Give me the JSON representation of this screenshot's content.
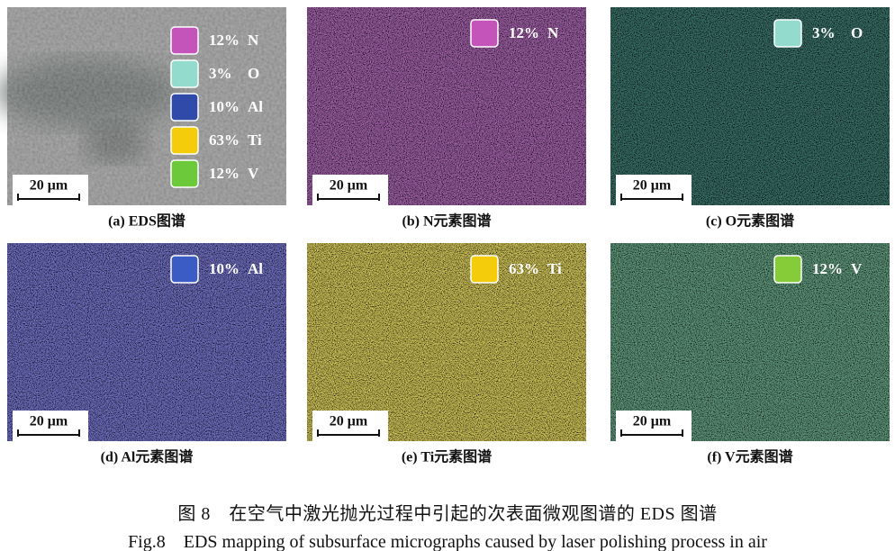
{
  "panels": [
    {
      "caption": "(a) EDS图谱",
      "scale_bar": "20 μm",
      "legend": [
        {
          "percent": "12%",
          "element": "N",
          "color": "#c454b9"
        },
        {
          "percent": "3%",
          "element": "O",
          "color": "#93dccd"
        },
        {
          "percent": "10%",
          "element": "Al",
          "color": "#2f4aa8"
        },
        {
          "percent": "63%",
          "element": "Ti",
          "color": "#f5cc0c"
        },
        {
          "percent": "12%",
          "element": "V",
          "color": "#6cc93a"
        }
      ]
    },
    {
      "caption": "(b) N元素图谱",
      "scale_bar": "20 μm",
      "legend": [
        {
          "percent": "12%",
          "element": "N",
          "color": "#c454b9"
        }
      ]
    },
    {
      "caption": "(c) O元素图谱",
      "scale_bar": "20 μm",
      "legend": [
        {
          "percent": "3%",
          "element": "O",
          "color": "#93dccd"
        }
      ]
    },
    {
      "caption": "(d) Al元素图谱",
      "scale_bar": "20 μm",
      "legend": [
        {
          "percent": "10%",
          "element": "Al",
          "color": "#3a5cc4"
        }
      ]
    },
    {
      "caption": "(e) Ti元素图谱",
      "scale_bar": "20 μm",
      "legend": [
        {
          "percent": "63%",
          "element": "Ti",
          "color": "#f5cc0c"
        }
      ]
    },
    {
      "caption": "(f) V元素图谱",
      "scale_bar": "20 μm",
      "legend": [
        {
          "percent": "12%",
          "element": "V",
          "color": "#86cc38"
        }
      ]
    }
  ],
  "figure_caption": {
    "zh": "图 8　在空气中激光抛光过程中引起的次表面微观图谱的 EDS 图谱",
    "en": "Fig.8　EDS mapping of subsurface micrographs caused by laser polishing process in air"
  }
}
